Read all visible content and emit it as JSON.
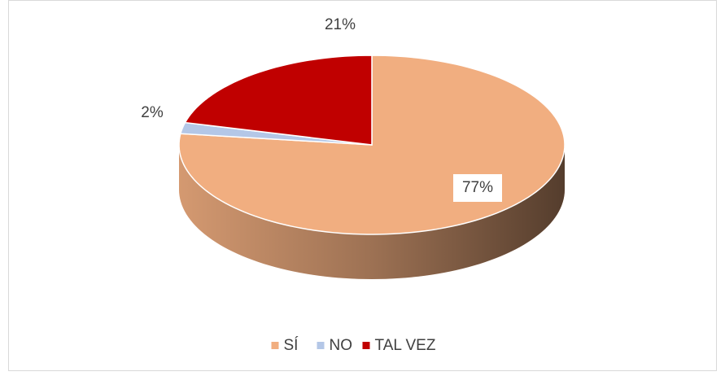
{
  "chart_data": {
    "type": "pie",
    "categories": [
      "SÍ",
      "NO",
      "TAL VEZ"
    ],
    "values": [
      77,
      2,
      21
    ],
    "value_labels": [
      "77%",
      "2%",
      "21%"
    ],
    "colors": [
      "#F1AE80",
      "#B4C7E7",
      "#C00000"
    ],
    "legend": "bottom"
  }
}
